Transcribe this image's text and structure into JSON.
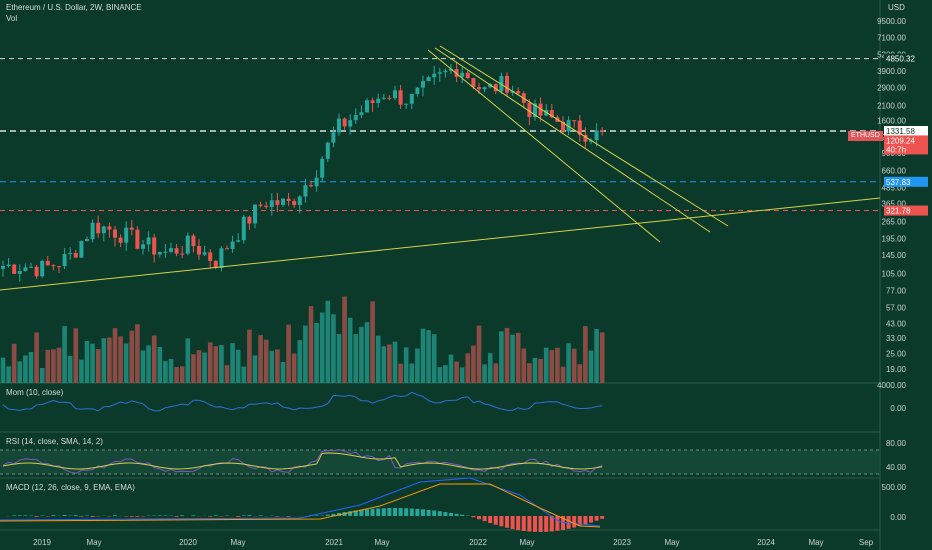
{
  "header": {
    "symbol_title": "Ethereum / U.S. Dollar, 2W, BINANCE",
    "volume_label": "Vol",
    "currency": "USD"
  },
  "price_axis_labels": [
    "9500.00",
    "7100.00",
    "5200.00",
    "3900.00",
    "2900.00",
    "2100.00",
    "1600.00",
    "1200.00",
    "900.00",
    "660.00",
    "485.00",
    "365.00",
    "265.00",
    "195.00",
    "145.00",
    "105.00",
    "77.00",
    "57.00",
    "43.00",
    "33.00",
    "25.00",
    "19.00"
  ],
  "volume_axis_label": "4000.00",
  "badges": {
    "resistance_top": "4850.32",
    "current_line": "1331.58",
    "last_price": "1209.24",
    "countdown": "40:7h",
    "ticker": "ETHUSD",
    "blue_level": "537.83",
    "red_level": "321.78"
  },
  "indicators": {
    "mom": {
      "label": "Mom (10, close)",
      "axis": [
        "0.00"
      ]
    },
    "rsi": {
      "label": "RSI (14, close, SMA, 14, 2)",
      "axis": [
        "80.00",
        "40.00"
      ]
    },
    "macd": {
      "label": "MACD (12, 26, close, 9, EMA, EMA)",
      "axis": [
        "500.00",
        "0.00"
      ]
    }
  },
  "x_axis_labels": [
    "2019",
    "May",
    "2020",
    "May",
    "2021",
    "May",
    "2022",
    "May",
    "2023",
    "May",
    "2024",
    "May",
    "Sep"
  ],
  "colors": {
    "background": "#0b3a2b",
    "up": "#26a69a",
    "down": "#ef5350",
    "trendline": "#d4d24a",
    "blue_level": "#2196f3",
    "red_level": "#ef5350"
  },
  "chart_data": {
    "type": "candlestick",
    "interval": "2W",
    "y_scale": "log",
    "horizontal_levels": [
      4850.32,
      1331.58,
      537.83,
      321.78
    ],
    "close_approx": [
      {
        "date": "2018-11",
        "close": 120
      },
      {
        "date": "2019-01",
        "close": 115
      },
      {
        "date": "2019-03",
        "close": 140
      },
      {
        "date": "2019-05",
        "close": 250
      },
      {
        "date": "2019-07",
        "close": 220
      },
      {
        "date": "2019-09",
        "close": 180
      },
      {
        "date": "2019-11",
        "close": 150
      },
      {
        "date": "2020-01",
        "close": 180
      },
      {
        "date": "2020-03",
        "close": 130
      },
      {
        "date": "2020-05",
        "close": 230
      },
      {
        "date": "2020-07",
        "close": 380
      },
      {
        "date": "2020-09",
        "close": 360
      },
      {
        "date": "2020-11",
        "close": 600
      },
      {
        "date": "2021-01",
        "close": 1400
      },
      {
        "date": "2021-03",
        "close": 1900
      },
      {
        "date": "2021-05",
        "close": 2700
      },
      {
        "date": "2021-07",
        "close": 2300
      },
      {
        "date": "2021-09",
        "close": 3300
      },
      {
        "date": "2021-11",
        "close": 4300
      },
      {
        "date": "2022-01",
        "close": 2700
      },
      {
        "date": "2022-03",
        "close": 3200
      },
      {
        "date": "2022-05",
        "close": 1900
      },
      {
        "date": "2022-07",
        "close": 1600
      },
      {
        "date": "2022-09",
        "close": 1350
      },
      {
        "date": "2022-11",
        "close": 1209.24
      }
    ]
  }
}
